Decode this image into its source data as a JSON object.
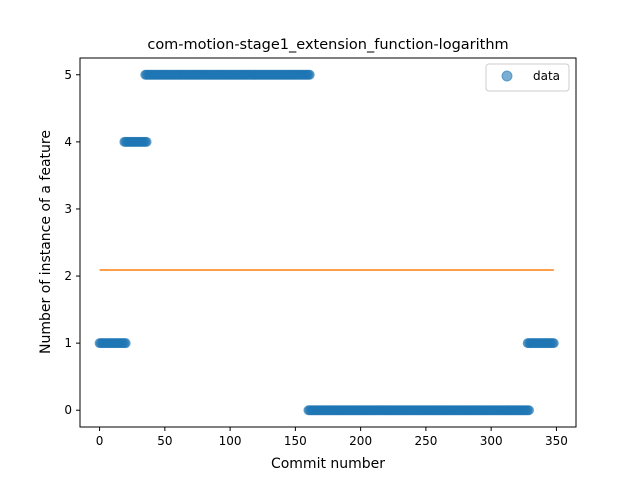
{
  "chart_data": {
    "type": "scatter",
    "title": "com-motion-stage1_extension_function-logarithm",
    "xlabel": "Commit number",
    "ylabel": "Number of instance of a feature",
    "xlim": [
      -15,
      365
    ],
    "ylim": [
      -0.25,
      5.25
    ],
    "xticks": [
      0,
      50,
      100,
      150,
      200,
      250,
      300,
      350
    ],
    "yticks": [
      0,
      1,
      2,
      3,
      4,
      5
    ],
    "legend": {
      "placement": "top-right",
      "entries": [
        "data"
      ]
    },
    "grid": false,
    "colors": {
      "scatter": "#1f77b4",
      "line": "#ff7f0e"
    },
    "series": [
      {
        "name": "data",
        "kind": "scatter",
        "segments": [
          {
            "x_start": 0,
            "x_end": 20,
            "y": 1
          },
          {
            "x_start": 19,
            "x_end": 36,
            "y": 4
          },
          {
            "x_start": 35,
            "x_end": 161,
            "y": 5
          },
          {
            "x_start": 160,
            "x_end": 329,
            "y": 0
          },
          {
            "x_start": 328,
            "x_end": 348,
            "y": 1
          }
        ]
      },
      {
        "kind": "line",
        "x": [
          0,
          348
        ],
        "y": [
          2.09,
          2.09
        ]
      }
    ]
  }
}
